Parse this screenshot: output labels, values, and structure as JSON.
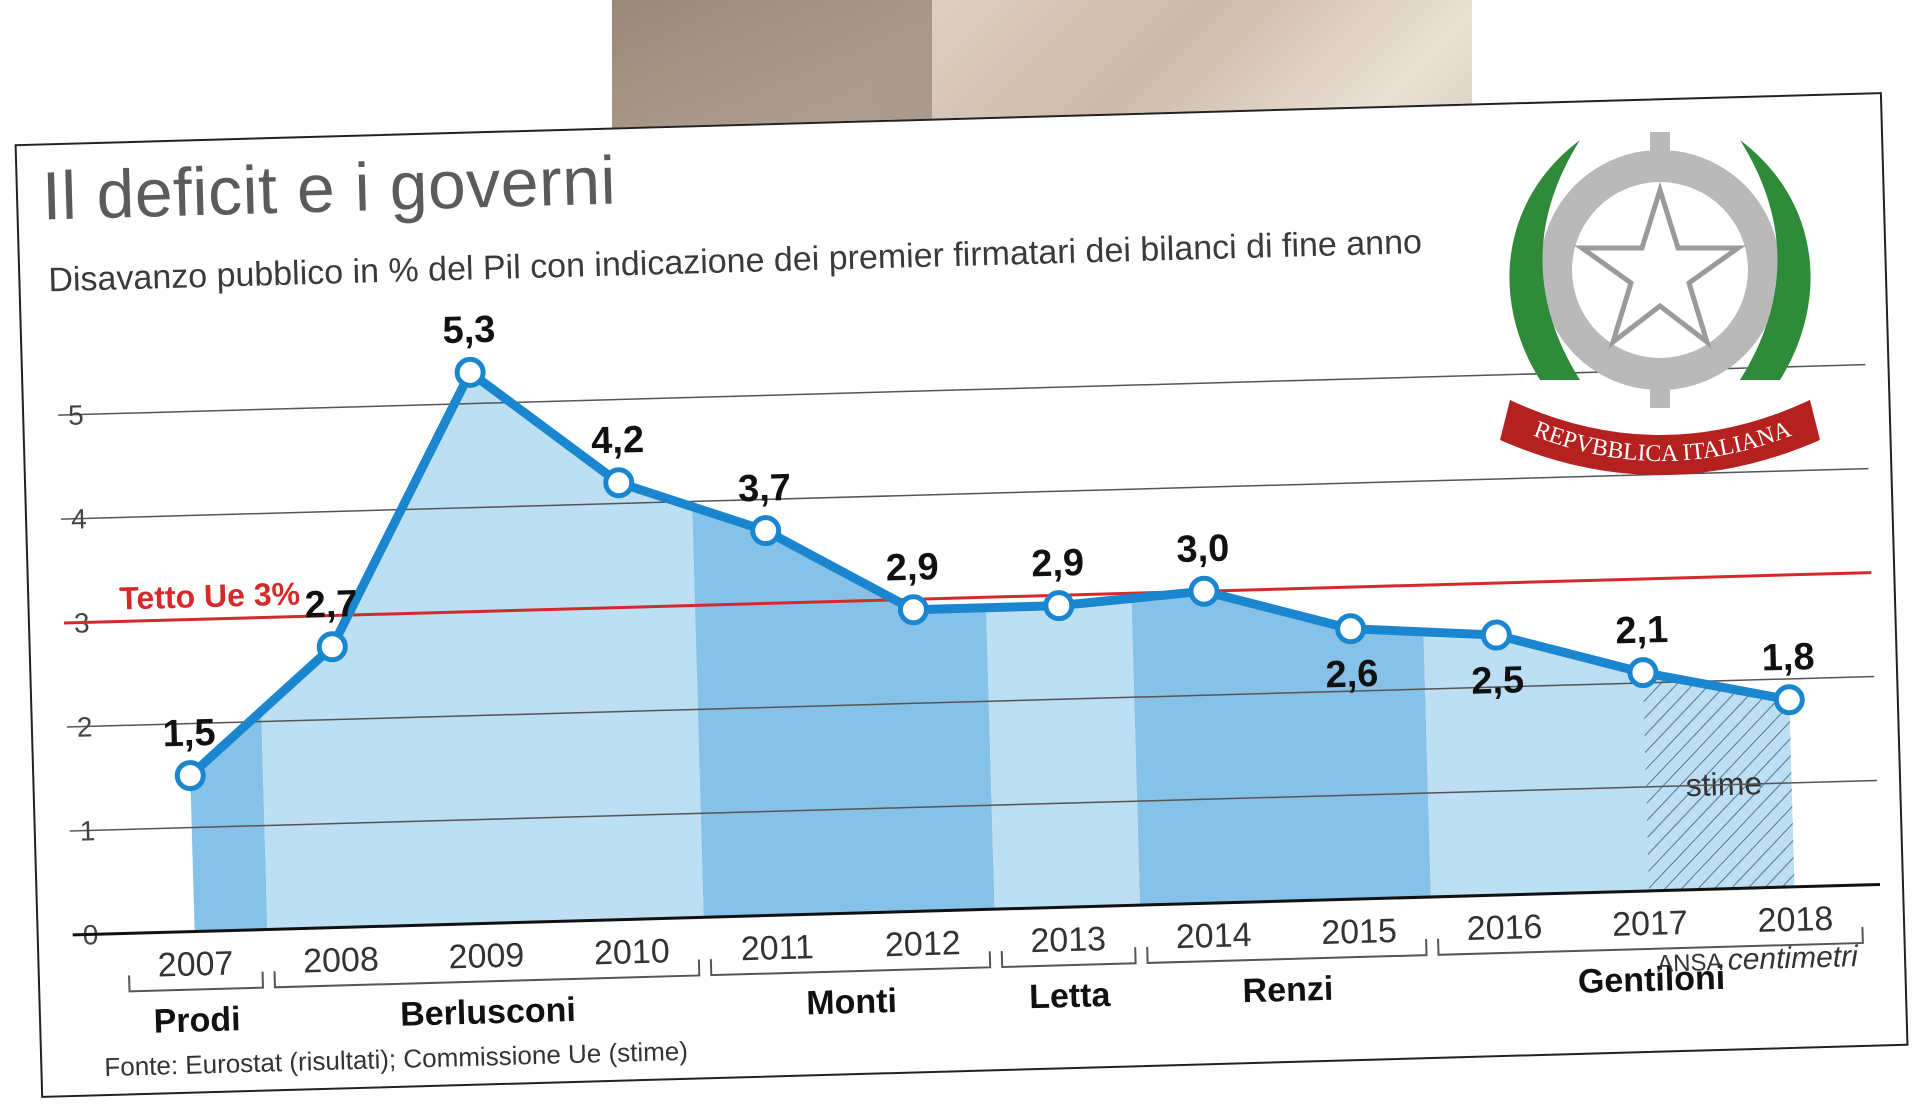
{
  "header": {
    "title": "Il deficit e i governi",
    "subtitle": "Disavanzo pubblico in % del Pil con indicazione dei premier firmatari dei bilanci di fine anno"
  },
  "footer": {
    "source": "Fonte: Eurostat (risultati); Commissione Ue (stime)",
    "brand_ansa": "ANSA",
    "brand_centimetri": "centimetri"
  },
  "emblem": {
    "text": "REPVBBLICA ITALIANA"
  },
  "chart_data": {
    "type": "area",
    "title": "Il deficit e i governi",
    "subtitle": "Disavanzo pubblico in % del Pil con indicazione dei premier firmatari dei bilanci di fine anno",
    "x": [
      "2007",
      "2008",
      "2009",
      "2010",
      "2011",
      "2012",
      "2013",
      "2014",
      "2015",
      "2016",
      "2017",
      "2018"
    ],
    "series": [
      {
        "values": [
          1.5,
          2.7,
          5.3,
          4.2,
          3.7,
          2.9,
          2.9,
          3.0,
          2.6,
          2.5,
          2.1,
          1.8
        ]
      }
    ],
    "data_labels": [
      "1,5",
      "2,7",
      "5,3",
      "4,2",
      "3,7",
      "2,9",
      "2,9",
      "3,0",
      "2,6",
      "2,5",
      "2,1",
      "1,8"
    ],
    "yticks": [
      0,
      1,
      2,
      3,
      4,
      5
    ],
    "ylim": [
      0,
      6
    ],
    "reference_line": {
      "value": 3,
      "label": "Tetto Ue 3%",
      "color": "#d42a2a"
    },
    "estimate_region": {
      "from": "2017",
      "to": "2018",
      "label": "stime"
    },
    "premiers": [
      {
        "name": "Prodi",
        "from": "2007",
        "to": "2007"
      },
      {
        "name": "Berlusconi",
        "from": "2008",
        "to": "2010"
      },
      {
        "name": "Monti",
        "from": "2011",
        "to": "2012"
      },
      {
        "name": "Letta",
        "from": "2013",
        "to": "2013"
      },
      {
        "name": "Renzi",
        "from": "2014",
        "to": "2015"
      },
      {
        "name": "Gentiloni",
        "from": "2016",
        "to": "2018"
      }
    ],
    "colors": {
      "line": "#1a86cf",
      "area_dark": "#86c1e8",
      "area_light": "#bddff3",
      "grid": "#555555"
    },
    "grid": true
  }
}
